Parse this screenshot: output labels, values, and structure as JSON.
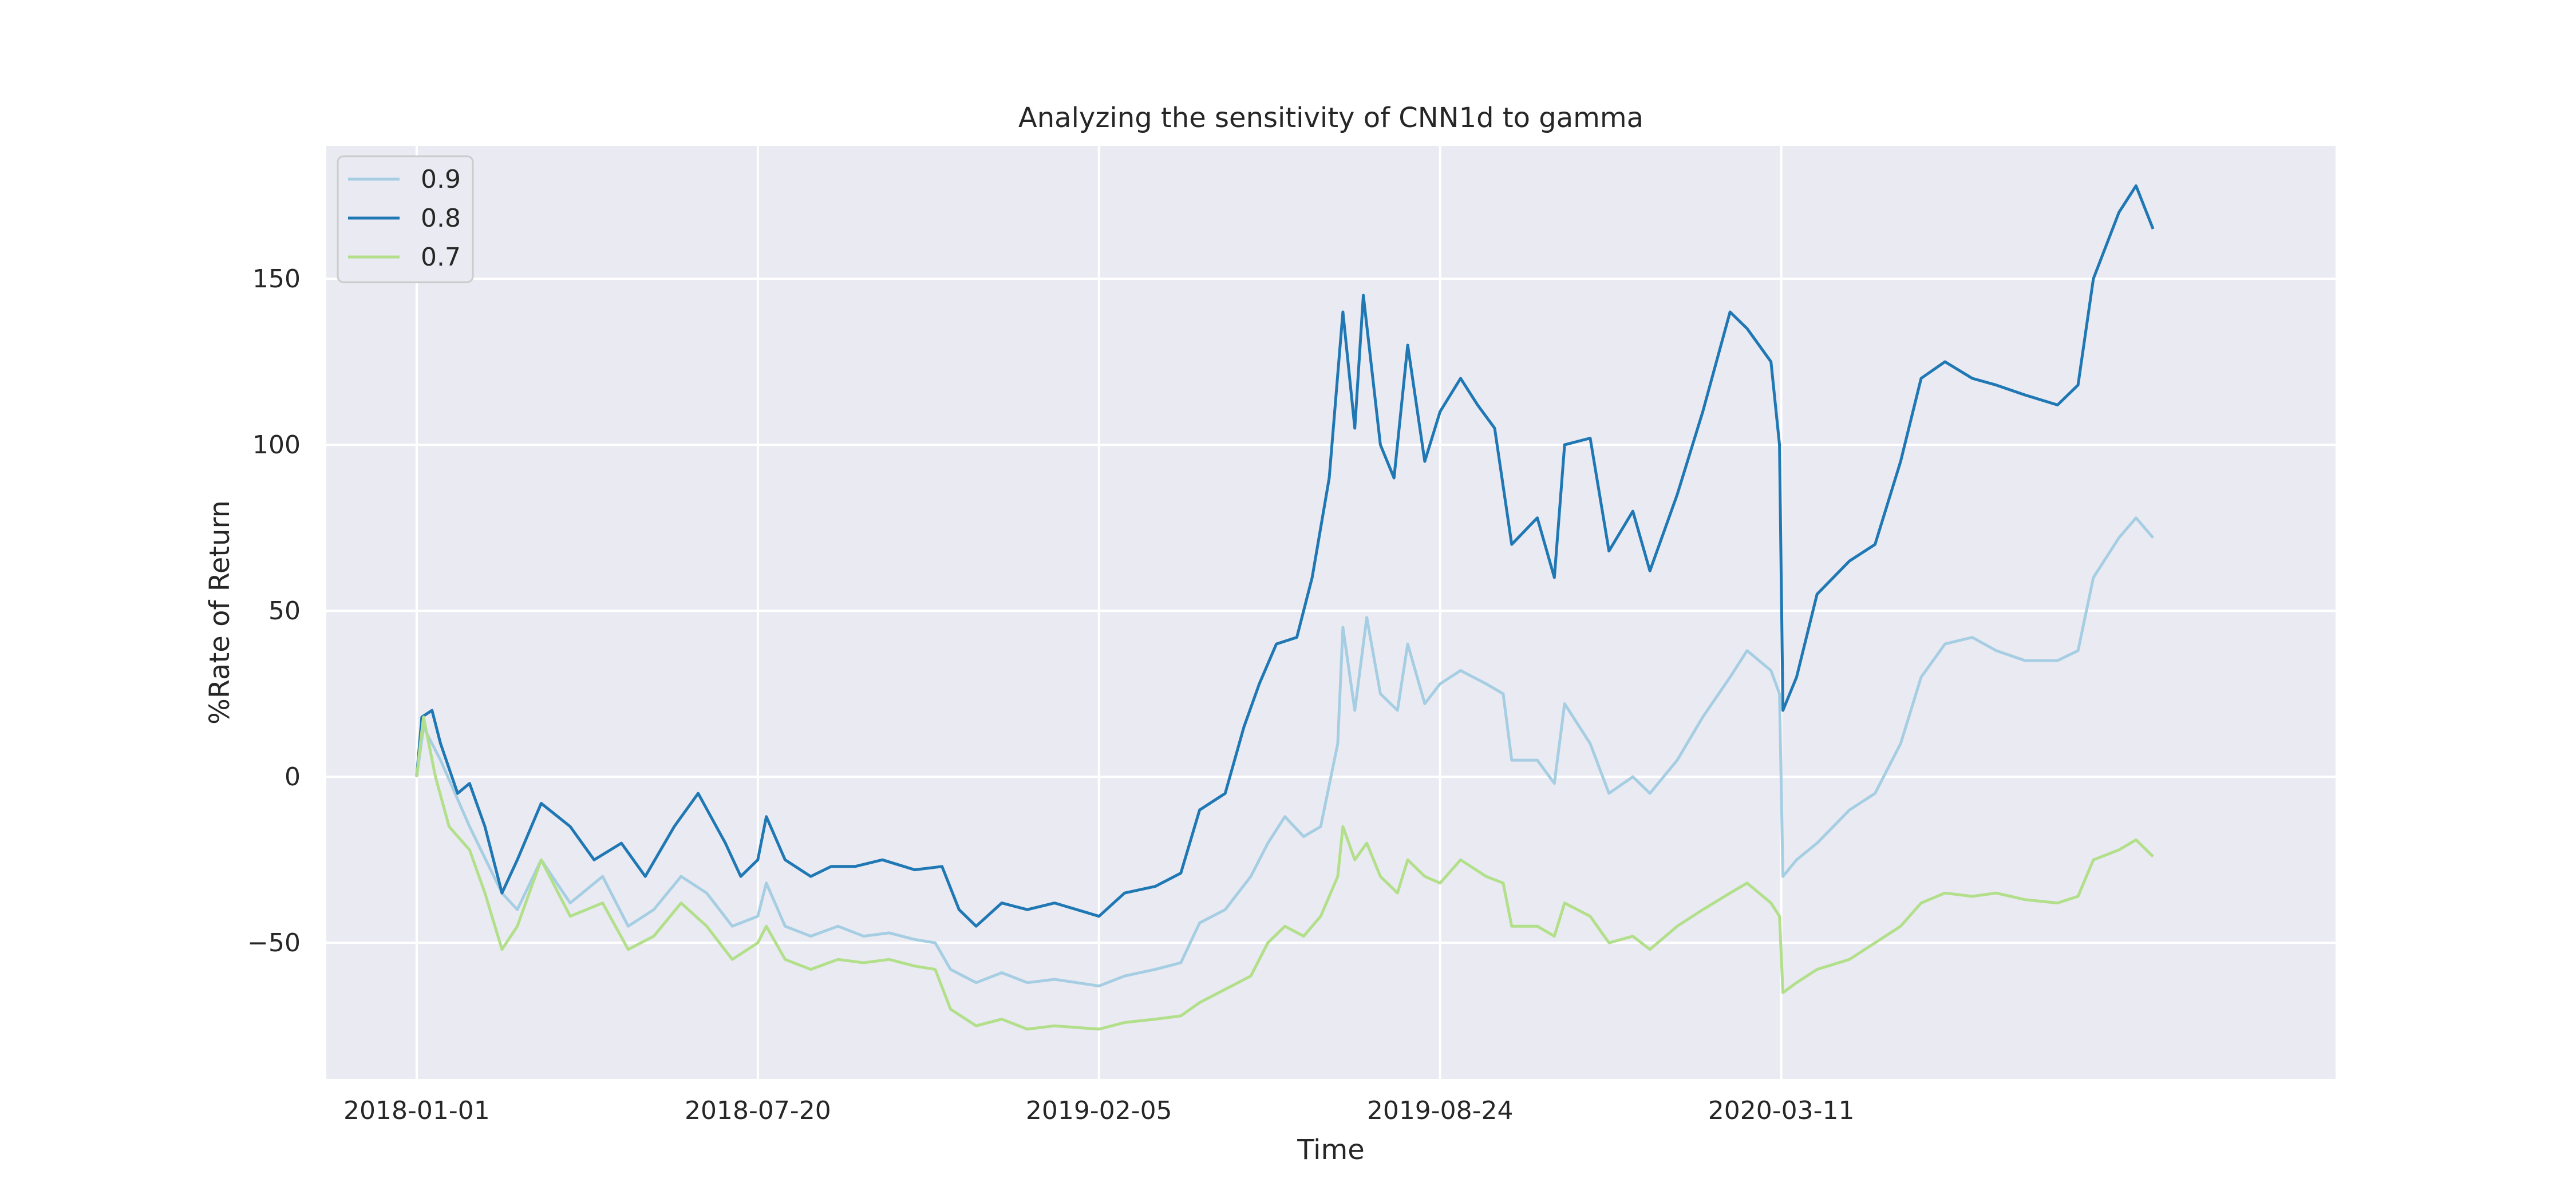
{
  "chart_data": {
    "type": "line",
    "title": "Analyzing the sensitivity of CNN1d to gamma",
    "xlabel": "Time",
    "ylabel": "%Rate of Return",
    "x_type": "date",
    "xlim": [
      "2017-11-09",
      "2021-01-30"
    ],
    "ylim": [
      -91,
      190
    ],
    "x_ticks": [
      "2018-01-01",
      "2018-07-20",
      "2019-02-05",
      "2019-08-24",
      "2020-03-11"
    ],
    "y_ticks": [
      -50,
      0,
      50,
      100,
      150
    ],
    "grid": true,
    "legend_position": "top-left",
    "series": [
      {
        "name": "0.9",
        "color": "#a6cee3",
        "points": [
          [
            "2018-01-01",
            0
          ],
          [
            "2018-01-05",
            15
          ],
          [
            "2018-01-15",
            5
          ],
          [
            "2018-02-01",
            -15
          ],
          [
            "2018-02-20",
            -35
          ],
          [
            "2018-03-01",
            -40
          ],
          [
            "2018-03-15",
            -25
          ],
          [
            "2018-04-01",
            -38
          ],
          [
            "2018-04-20",
            -30
          ],
          [
            "2018-05-05",
            -45
          ],
          [
            "2018-05-20",
            -40
          ],
          [
            "2018-06-05",
            -30
          ],
          [
            "2018-06-20",
            -35
          ],
          [
            "2018-07-05",
            -45
          ],
          [
            "2018-07-20",
            -42
          ],
          [
            "2018-07-25",
            -32
          ],
          [
            "2018-08-05",
            -45
          ],
          [
            "2018-08-20",
            -48
          ],
          [
            "2018-09-05",
            -45
          ],
          [
            "2018-09-20",
            -48
          ],
          [
            "2018-10-05",
            -47
          ],
          [
            "2018-10-20",
            -49
          ],
          [
            "2018-11-01",
            -50
          ],
          [
            "2018-11-10",
            -58
          ],
          [
            "2018-11-25",
            -62
          ],
          [
            "2018-12-10",
            -59
          ],
          [
            "2018-12-25",
            -62
          ],
          [
            "2019-01-10",
            -61
          ],
          [
            "2019-02-05",
            -63
          ],
          [
            "2019-02-20",
            -60
          ],
          [
            "2019-03-10",
            -58
          ],
          [
            "2019-03-25",
            -56
          ],
          [
            "2019-04-05",
            -44
          ],
          [
            "2019-04-20",
            -40
          ],
          [
            "2019-05-05",
            -30
          ],
          [
            "2019-05-15",
            -20
          ],
          [
            "2019-05-25",
            -12
          ],
          [
            "2019-06-05",
            -18
          ],
          [
            "2019-06-15",
            -15
          ],
          [
            "2019-06-25",
            10
          ],
          [
            "2019-06-28",
            45
          ],
          [
            "2019-07-05",
            20
          ],
          [
            "2019-07-12",
            48
          ],
          [
            "2019-07-20",
            25
          ],
          [
            "2019-07-30",
            20
          ],
          [
            "2019-08-05",
            40
          ],
          [
            "2019-08-15",
            22
          ],
          [
            "2019-08-24",
            28
          ],
          [
            "2019-09-05",
            32
          ],
          [
            "2019-09-20",
            28
          ],
          [
            "2019-09-30",
            25
          ],
          [
            "2019-10-05",
            5
          ],
          [
            "2019-10-20",
            5
          ],
          [
            "2019-10-30",
            -2
          ],
          [
            "2019-11-05",
            22
          ],
          [
            "2019-11-20",
            10
          ],
          [
            "2019-12-01",
            -5
          ],
          [
            "2019-12-15",
            0
          ],
          [
            "2019-12-25",
            -5
          ],
          [
            "2020-01-10",
            5
          ],
          [
            "2020-01-25",
            18
          ],
          [
            "2020-02-10",
            30
          ],
          [
            "2020-02-20",
            38
          ],
          [
            "2020-03-05",
            32
          ],
          [
            "2020-03-10",
            25
          ],
          [
            "2020-03-12",
            -30
          ],
          [
            "2020-03-20",
            -25
          ],
          [
            "2020-04-01",
            -20
          ],
          [
            "2020-04-20",
            -10
          ],
          [
            "2020-05-05",
            -5
          ],
          [
            "2020-05-20",
            10
          ],
          [
            "2020-06-01",
            30
          ],
          [
            "2020-06-15",
            40
          ],
          [
            "2020-07-01",
            42
          ],
          [
            "2020-07-15",
            38
          ],
          [
            "2020-08-01",
            35
          ],
          [
            "2020-08-20",
            35
          ],
          [
            "2020-09-01",
            38
          ],
          [
            "2020-09-10",
            60
          ],
          [
            "2020-09-25",
            72
          ],
          [
            "2020-10-05",
            78
          ],
          [
            "2020-10-15",
            72
          ]
        ]
      },
      {
        "name": "0.8",
        "color": "#1f78b4",
        "points": [
          [
            "2018-01-01",
            0
          ],
          [
            "2018-01-04",
            18
          ],
          [
            "2018-01-10",
            20
          ],
          [
            "2018-01-15",
            10
          ],
          [
            "2018-01-25",
            -5
          ],
          [
            "2018-02-01",
            -2
          ],
          [
            "2018-02-10",
            -15
          ],
          [
            "2018-02-20",
            -35
          ],
          [
            "2018-03-01",
            -25
          ],
          [
            "2018-03-15",
            -8
          ],
          [
            "2018-04-01",
            -15
          ],
          [
            "2018-04-15",
            -25
          ],
          [
            "2018-05-01",
            -20
          ],
          [
            "2018-05-15",
            -30
          ],
          [
            "2018-06-01",
            -15
          ],
          [
            "2018-06-15",
            -5
          ],
          [
            "2018-07-01",
            -20
          ],
          [
            "2018-07-10",
            -30
          ],
          [
            "2018-07-20",
            -25
          ],
          [
            "2018-07-25",
            -12
          ],
          [
            "2018-08-05",
            -25
          ],
          [
            "2018-08-20",
            -30
          ],
          [
            "2018-09-01",
            -27
          ],
          [
            "2018-09-15",
            -27
          ],
          [
            "2018-10-01",
            -25
          ],
          [
            "2018-10-20",
            -28
          ],
          [
            "2018-11-05",
            -27
          ],
          [
            "2018-11-15",
            -40
          ],
          [
            "2018-11-25",
            -45
          ],
          [
            "2018-12-10",
            -38
          ],
          [
            "2018-12-25",
            -40
          ],
          [
            "2019-01-10",
            -38
          ],
          [
            "2019-02-05",
            -42
          ],
          [
            "2019-02-20",
            -35
          ],
          [
            "2019-03-10",
            -33
          ],
          [
            "2019-03-25",
            -29
          ],
          [
            "2019-04-05",
            -10
          ],
          [
            "2019-04-20",
            -5
          ],
          [
            "2019-05-01",
            15
          ],
          [
            "2019-05-10",
            28
          ],
          [
            "2019-05-20",
            40
          ],
          [
            "2019-06-01",
            42
          ],
          [
            "2019-06-10",
            60
          ],
          [
            "2019-06-20",
            90
          ],
          [
            "2019-06-28",
            140
          ],
          [
            "2019-07-05",
            105
          ],
          [
            "2019-07-10",
            145
          ],
          [
            "2019-07-20",
            100
          ],
          [
            "2019-07-28",
            90
          ],
          [
            "2019-08-05",
            130
          ],
          [
            "2019-08-15",
            95
          ],
          [
            "2019-08-24",
            110
          ],
          [
            "2019-09-05",
            120
          ],
          [
            "2019-09-15",
            112
          ],
          [
            "2019-09-25",
            105
          ],
          [
            "2019-10-05",
            70
          ],
          [
            "2019-10-20",
            78
          ],
          [
            "2019-10-30",
            60
          ],
          [
            "2019-11-05",
            100
          ],
          [
            "2019-11-20",
            102
          ],
          [
            "2019-12-01",
            68
          ],
          [
            "2019-12-15",
            80
          ],
          [
            "2019-12-25",
            62
          ],
          [
            "2020-01-10",
            85
          ],
          [
            "2020-01-25",
            110
          ],
          [
            "2020-02-10",
            140
          ],
          [
            "2020-02-20",
            135
          ],
          [
            "2020-03-05",
            125
          ],
          [
            "2020-03-10",
            100
          ],
          [
            "2020-03-12",
            20
          ],
          [
            "2020-03-20",
            30
          ],
          [
            "2020-04-01",
            55
          ],
          [
            "2020-04-20",
            65
          ],
          [
            "2020-05-05",
            70
          ],
          [
            "2020-05-20",
            95
          ],
          [
            "2020-06-01",
            120
          ],
          [
            "2020-06-15",
            125
          ],
          [
            "2020-07-01",
            120
          ],
          [
            "2020-07-15",
            118
          ],
          [
            "2020-08-01",
            115
          ],
          [
            "2020-08-20",
            112
          ],
          [
            "2020-09-01",
            118
          ],
          [
            "2020-09-10",
            150
          ],
          [
            "2020-09-25",
            170
          ],
          [
            "2020-10-05",
            178
          ],
          [
            "2020-10-15",
            165
          ]
        ]
      },
      {
        "name": "0.7",
        "color": "#b2df8a",
        "points": [
          [
            "2018-01-01",
            0
          ],
          [
            "2018-01-05",
            18
          ],
          [
            "2018-01-12",
            0
          ],
          [
            "2018-01-20",
            -15
          ],
          [
            "2018-02-01",
            -22
          ],
          [
            "2018-02-10",
            -35
          ],
          [
            "2018-02-20",
            -52
          ],
          [
            "2018-03-01",
            -45
          ],
          [
            "2018-03-15",
            -25
          ],
          [
            "2018-04-01",
            -42
          ],
          [
            "2018-04-20",
            -38
          ],
          [
            "2018-05-05",
            -52
          ],
          [
            "2018-05-20",
            -48
          ],
          [
            "2018-06-05",
            -38
          ],
          [
            "2018-06-20",
            -45
          ],
          [
            "2018-07-05",
            -55
          ],
          [
            "2018-07-20",
            -50
          ],
          [
            "2018-07-25",
            -45
          ],
          [
            "2018-08-05",
            -55
          ],
          [
            "2018-08-20",
            -58
          ],
          [
            "2018-09-05",
            -55
          ],
          [
            "2018-09-20",
            -56
          ],
          [
            "2018-10-05",
            -55
          ],
          [
            "2018-10-20",
            -57
          ],
          [
            "2018-11-01",
            -58
          ],
          [
            "2018-11-10",
            -70
          ],
          [
            "2018-11-25",
            -75
          ],
          [
            "2018-12-10",
            -73
          ],
          [
            "2018-12-25",
            -76
          ],
          [
            "2019-01-10",
            -75
          ],
          [
            "2019-02-05",
            -76
          ],
          [
            "2019-02-20",
            -74
          ],
          [
            "2019-03-10",
            -73
          ],
          [
            "2019-03-25",
            -72
          ],
          [
            "2019-04-05",
            -68
          ],
          [
            "2019-04-20",
            -64
          ],
          [
            "2019-05-05",
            -60
          ],
          [
            "2019-05-15",
            -50
          ],
          [
            "2019-05-25",
            -45
          ],
          [
            "2019-06-05",
            -48
          ],
          [
            "2019-06-15",
            -42
          ],
          [
            "2019-06-25",
            -30
          ],
          [
            "2019-06-28",
            -15
          ],
          [
            "2019-07-05",
            -25
          ],
          [
            "2019-07-12",
            -20
          ],
          [
            "2019-07-20",
            -30
          ],
          [
            "2019-07-30",
            -35
          ],
          [
            "2019-08-05",
            -25
          ],
          [
            "2019-08-15",
            -30
          ],
          [
            "2019-08-24",
            -32
          ],
          [
            "2019-09-05",
            -25
          ],
          [
            "2019-09-20",
            -30
          ],
          [
            "2019-09-30",
            -32
          ],
          [
            "2019-10-05",
            -45
          ],
          [
            "2019-10-20",
            -45
          ],
          [
            "2019-10-30",
            -48
          ],
          [
            "2019-11-05",
            -38
          ],
          [
            "2019-11-20",
            -42
          ],
          [
            "2019-12-01",
            -50
          ],
          [
            "2019-12-15",
            -48
          ],
          [
            "2019-12-25",
            -52
          ],
          [
            "2020-01-10",
            -45
          ],
          [
            "2020-01-25",
            -40
          ],
          [
            "2020-02-10",
            -35
          ],
          [
            "2020-02-20",
            -32
          ],
          [
            "2020-03-05",
            -38
          ],
          [
            "2020-03-10",
            -42
          ],
          [
            "2020-03-12",
            -65
          ],
          [
            "2020-03-20",
            -62
          ],
          [
            "2020-04-01",
            -58
          ],
          [
            "2020-04-20",
            -55
          ],
          [
            "2020-05-05",
            -50
          ],
          [
            "2020-05-20",
            -45
          ],
          [
            "2020-06-01",
            -38
          ],
          [
            "2020-06-15",
            -35
          ],
          [
            "2020-07-01",
            -36
          ],
          [
            "2020-07-15",
            -35
          ],
          [
            "2020-08-01",
            -37
          ],
          [
            "2020-08-20",
            -38
          ],
          [
            "2020-09-01",
            -36
          ],
          [
            "2020-09-10",
            -25
          ],
          [
            "2020-09-25",
            -22
          ],
          [
            "2020-10-05",
            -19
          ],
          [
            "2020-10-15",
            -24
          ]
        ]
      }
    ]
  }
}
